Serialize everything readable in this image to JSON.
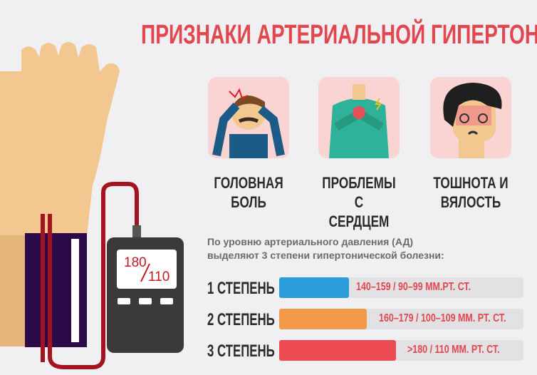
{
  "title": "ПРИЗНАКИ АРТЕРИАЛЬНОЙ ГИПЕРТОНИИ",
  "monitor": {
    "systolic": "180",
    "diastolic": "110"
  },
  "symptoms": [
    {
      "label1": "ГОЛОВНАЯ",
      "label2": "БОЛЬ",
      "icon": "headache-icon"
    },
    {
      "label1": "ПРОБЛЕМЫ С",
      "label2": "СЕРДЦЕМ",
      "icon": "heart-pain-icon"
    },
    {
      "label1": "ТОШНОТА И",
      "label2": "ВЯЛОСТЬ",
      "icon": "nausea-icon"
    }
  ],
  "intro": {
    "line1": "По уровню артериального давления (АД)",
    "line2": "выделяют 3 степени гипертонической болезни:"
  },
  "degrees": [
    {
      "label": "1 СТЕПЕНЬ",
      "range": "140–159 / 90–99 ММ.РТ. СТ.",
      "level": 0.285,
      "color": "#2d9cdb"
    },
    {
      "label": "2 СТЕПЕНЬ",
      "range": "160–179 / 100–109 ММ. РТ. СТ.",
      "level": 0.36,
      "color": "#f2994a"
    },
    {
      "label": "3 СТЕПЕНЬ",
      "range": ">180 / 110 ММ. РТ. СТ.",
      "level": 0.477,
      "color": "#eb4a52"
    }
  ],
  "colors": {
    "accent": "#e2464f",
    "card": "#f9d4d3"
  }
}
